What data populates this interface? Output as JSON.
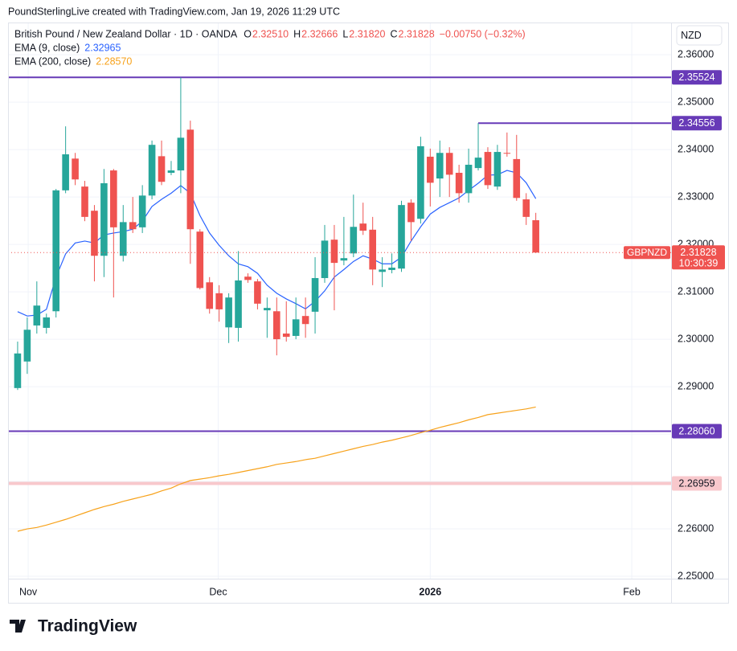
{
  "header": {
    "credit": "PoundSterlingLive created with TradingView.com, Jan 19, 2026 11:29 UTC"
  },
  "chart_data": {
    "type": "candlestick",
    "title": "British Pound / New Zealand Dollar · 1D · OANDA",
    "legend_ohlc": [
      {
        "name": "O",
        "value": "2.32510"
      },
      {
        "name": "H",
        "value": "2.32666"
      },
      {
        "name": "L",
        "value": "2.31820"
      },
      {
        "name": "C",
        "value": "2.31828"
      }
    ],
    "change": "−0.00750 (−0.32%)",
    "currency": "NZD",
    "up_color": "#26a69a",
    "down_color": "#ef5350",
    "candles": {
      "open": [
        2.2897,
        2.2953,
        2.3029,
        2.3024,
        2.3059,
        2.3314,
        2.3381,
        2.3322,
        2.3271,
        2.3176,
        2.3356,
        2.3176,
        2.3247,
        2.3236,
        2.3303,
        2.3386,
        2.3351,
        2.3356,
        2.3442,
        2.3227,
        2.312,
        2.3097,
        2.3025,
        2.3024,
        2.3132,
        2.3122,
        2.3061,
        2.3059,
        2.3012,
        2.3007,
        2.3049,
        2.3058,
        2.3129,
        2.321,
        2.3166,
        2.3181,
        2.3244,
        2.3231,
        2.3142,
        2.3146,
        2.3149,
        2.3288,
        2.3254,
        2.3385,
        2.3339,
        2.3393,
        2.3351,
        2.3308,
        2.3361,
        2.3395,
        2.3322,
        2.3393,
        2.338,
        2.3295,
        2.3251
      ],
      "high": [
        2.2995,
        2.3046,
        2.3122,
        2.3054,
        2.3317,
        2.3449,
        2.3393,
        2.3334,
        2.3283,
        2.3359,
        2.3359,
        2.3283,
        2.33,
        2.3325,
        2.3419,
        2.3419,
        2.3376,
        2.3552,
        2.3461,
        2.3232,
        2.3131,
        2.3114,
        2.3097,
        2.3186,
        2.3139,
        2.3127,
        2.3088,
        2.3088,
        2.308,
        2.3088,
        2.3088,
        2.3173,
        2.3241,
        2.3241,
        2.3258,
        2.3305,
        2.3288,
        2.3258,
        2.3173,
        2.3181,
        2.3292,
        2.3295,
        2.3427,
        2.3402,
        2.3419,
        2.3405,
        2.3368,
        2.3402,
        2.3456,
        2.3405,
        2.341,
        2.3436,
        2.3431,
        2.3308,
        2.32666
      ],
      "low": [
        2.2893,
        2.2927,
        2.3012,
        2.3012,
        2.3046,
        2.3308,
        2.3325,
        2.3249,
        2.3122,
        2.3131,
        2.3088,
        2.3164,
        2.3224,
        2.3224,
        2.3295,
        2.3325,
        2.3346,
        2.3308,
        2.3159,
        2.3105,
        2.3054,
        2.3037,
        2.2992,
        2.2995,
        2.3119,
        2.3063,
        2.3003,
        2.2966,
        2.2995,
        2.3,
        2.3003,
        2.3012,
        2.3119,
        2.3061,
        2.3156,
        2.3173,
        2.322,
        2.3114,
        2.311,
        2.3139,
        2.3142,
        2.3207,
        2.3244,
        2.328,
        2.33,
        2.33,
        2.3288,
        2.3288,
        2.3356,
        2.3317,
        2.3315,
        2.3385,
        2.3292,
        2.3241,
        2.3182
      ],
      "close": [
        2.297,
        2.302,
        2.3071,
        2.3046,
        2.3314,
        2.339,
        2.3337,
        2.3258,
        2.3176,
        2.3329,
        2.3236,
        2.3247,
        2.3232,
        2.3303,
        2.341,
        2.3332,
        2.3356,
        2.3425,
        2.3232,
        2.3108,
        2.3064,
        2.3063,
        2.3088,
        2.3124,
        2.3125,
        2.3075,
        2.3066,
        2.3,
        2.3005,
        2.3042,
        2.3032,
        2.3129,
        2.3208,
        2.3161,
        2.3171,
        2.3237,
        2.3229,
        2.3147,
        2.3147,
        2.3151,
        2.3283,
        2.3247,
        2.3407,
        2.333,
        2.3393,
        2.3347,
        2.3308,
        2.3368,
        2.3383,
        2.3325,
        2.3395,
        2.3392,
        2.3298,
        2.3258,
        2.31828
      ]
    },
    "series": [
      {
        "name": "EMA (9, close)",
        "color": "#2962ff",
        "value_label": "2.32965",
        "values": [
          2.3058,
          2.3049,
          2.3051,
          2.3063,
          2.3131,
          2.318,
          2.3203,
          2.3207,
          2.3203,
          2.322,
          2.3224,
          2.3227,
          2.3232,
          2.3249,
          2.328,
          2.3295,
          2.3308,
          2.3324,
          2.3308,
          2.3261,
          2.3224,
          2.3198,
          2.3176,
          2.3159,
          2.3153,
          2.3139,
          2.3114,
          2.3097,
          2.3085,
          2.3075,
          2.3064,
          2.308,
          2.3102,
          2.3131,
          2.3147,
          2.3164,
          2.3176,
          2.3169,
          2.3159,
          2.3159,
          2.3173,
          2.3207,
          2.3237,
          2.3264,
          2.3278,
          2.3288,
          2.3298,
          2.3314,
          2.3329,
          2.3346,
          2.3347,
          2.3356,
          2.3351,
          2.333,
          2.32965
        ]
      },
      {
        "name": "EMA (200, close)",
        "color": "#f7a21b",
        "value_label": "2.28570",
        "values": [
          2.2595,
          2.26,
          2.2603,
          2.2608,
          2.2614,
          2.262,
          2.2627,
          2.2634,
          2.2641,
          2.2647,
          2.2652,
          2.2658,
          2.2663,
          2.2668,
          2.2673,
          2.268,
          2.2686,
          2.2695,
          2.2702,
          2.2705,
          2.2708,
          2.2712,
          2.2715,
          2.2719,
          2.2723,
          2.2727,
          2.2731,
          2.2736,
          2.2739,
          2.2742,
          2.2746,
          2.2749,
          2.2754,
          2.2759,
          2.2764,
          2.2769,
          2.2774,
          2.2778,
          2.2783,
          2.2787,
          2.2792,
          2.2797,
          2.2803,
          2.2808,
          2.2814,
          2.2819,
          2.2824,
          2.283,
          2.2835,
          2.2841,
          2.2844,
          2.2847,
          2.285,
          2.2853,
          2.2857
        ]
      }
    ],
    "hlines": [
      {
        "value": 2.35524,
        "label": "2.35524",
        "color": "#673ab7",
        "text_color": "#ffffff",
        "extend": "both"
      },
      {
        "value": 2.34556,
        "label": "2.34556",
        "color": "#673ab7",
        "text_color": "#ffffff",
        "extend": "right"
      },
      {
        "value": 2.2806,
        "label": "2.28060",
        "color": "#673ab7",
        "text_color": "#ffffff",
        "extend": "both"
      },
      {
        "value": 2.26959,
        "label": "2.26959",
        "color": "#f8c8cc",
        "text_color": "#131722",
        "extend": "both"
      }
    ],
    "last_price": {
      "symbol": "GBPNZD",
      "value": 2.31828,
      "label": "2.31828",
      "countdown": "10:30:39"
    },
    "ylim": [
      2.2495,
      2.3668
    ],
    "yticks": [
      {
        "value": 2.25,
        "label": "2.25000"
      },
      {
        "value": 2.26,
        "label": "2.26000"
      },
      {
        "value": 2.27,
        "label": "2.27000"
      },
      {
        "value": 2.28,
        "label": "2.28000"
      },
      {
        "value": 2.29,
        "label": "2.29000"
      },
      {
        "value": 2.3,
        "label": "2.30000"
      },
      {
        "value": 2.31,
        "label": "2.31000"
      },
      {
        "value": 2.32,
        "label": "2.32000"
      },
      {
        "value": 2.33,
        "label": "2.33000"
      },
      {
        "value": 2.34,
        "label": "2.34000"
      },
      {
        "value": 2.35,
        "label": "2.35000"
      },
      {
        "value": 2.36,
        "label": "2.36000"
      }
    ],
    "xlim": [
      -1,
      68.1
    ],
    "xticks": [
      {
        "value": 1.1,
        "label": "Nov"
      },
      {
        "value": 20.9,
        "label": "Dec"
      },
      {
        "value": 43,
        "label": "2026"
      },
      {
        "value": 64,
        "label": "Feb"
      }
    ],
    "grid": true
  },
  "footer": {
    "brand": "TradingView"
  }
}
